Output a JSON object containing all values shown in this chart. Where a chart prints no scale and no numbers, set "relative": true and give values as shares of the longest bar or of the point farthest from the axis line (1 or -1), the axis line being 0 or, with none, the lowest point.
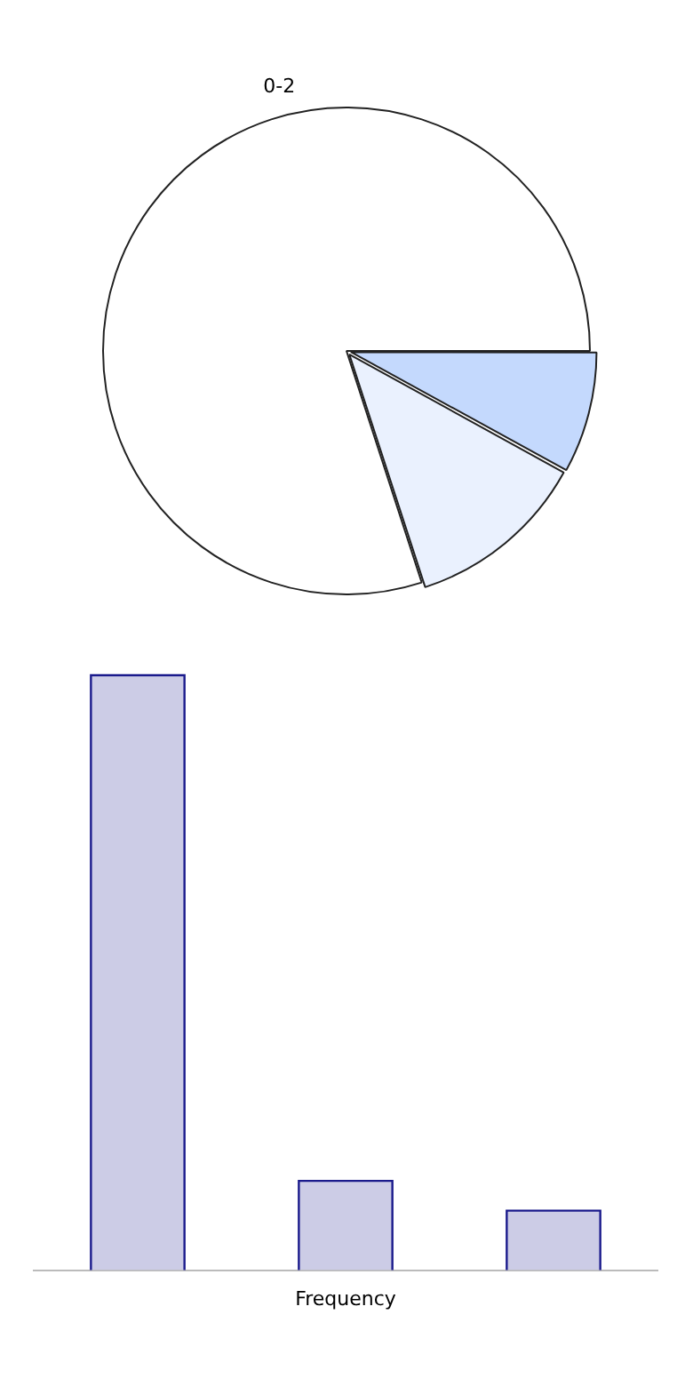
{
  "chart_data": [
    {
      "type": "pie",
      "categories": [
        "0-2",
        null,
        null
      ],
      "values": [
        80,
        12,
        8
      ],
      "colors": [
        "#ffffff",
        "#eaf1fe",
        "#c4d9fd"
      ],
      "legend": false
    },
    {
      "type": "bar",
      "xlabel": "Frequency",
      "categories": [
        null,
        null,
        null
      ],
      "values": [
        1,
        0.15,
        0.1
      ],
      "color": "#ccccE6",
      "relative": true,
      "legend": false
    }
  ]
}
